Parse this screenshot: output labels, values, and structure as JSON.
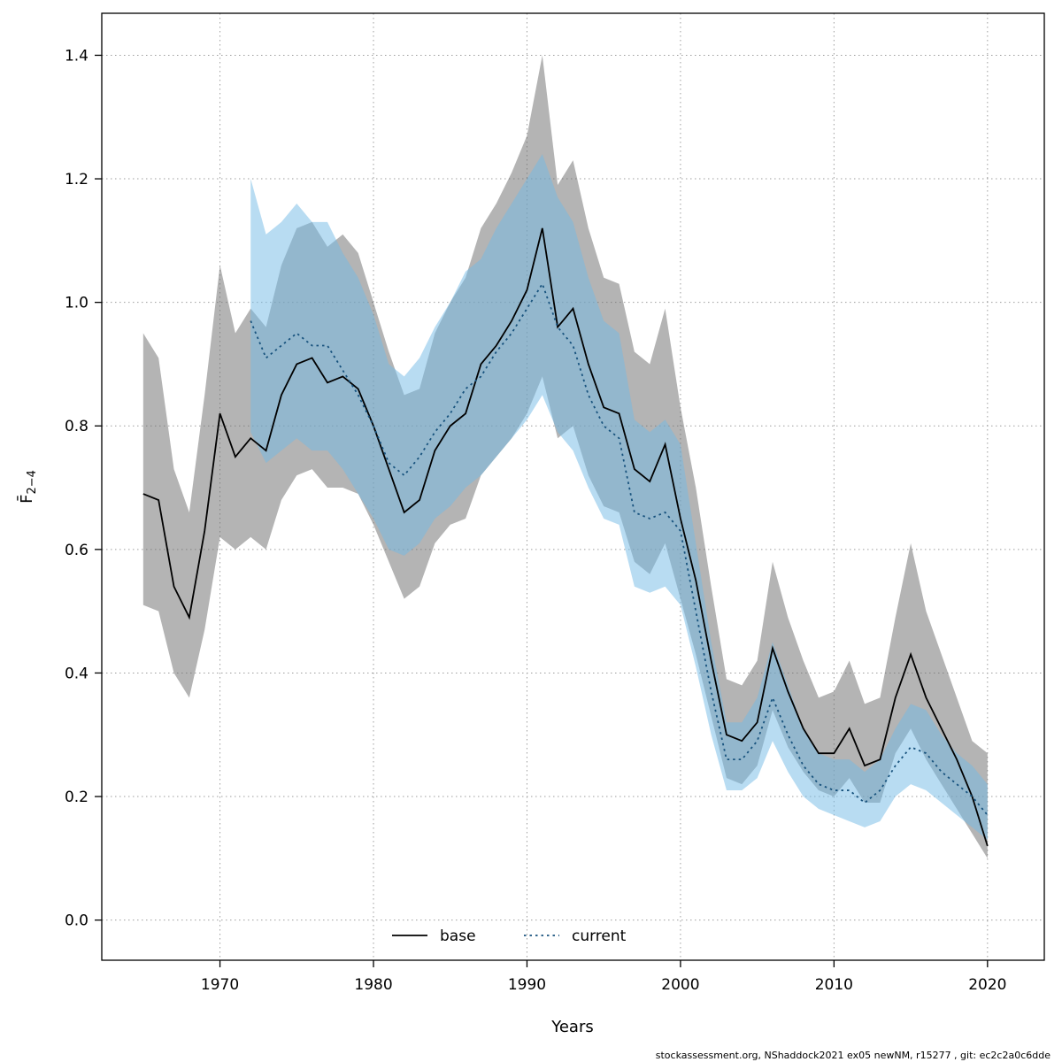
{
  "footer": {
    "credit": "stockassessment.org, NShaddock2021 ex05 newNM, r15277 , git: ec2c2a0c6dde"
  },
  "chart_data": {
    "type": "line",
    "title": "",
    "xlabel": "Years",
    "ylabel_main": "F̄",
    "ylabel_sub": "2−4",
    "grid": true,
    "legend_position": "bottom-center-inside",
    "axes": {
      "xlim": [
        1962.3,
        2023.7
      ],
      "ylim": [
        -0.065,
        1.468
      ],
      "xticks": [
        1970,
        1980,
        1990,
        2000,
        2010,
        2020
      ],
      "yticks": [
        0.0,
        0.2,
        0.4,
        0.6,
        0.8,
        1.0,
        1.2,
        1.4
      ]
    },
    "series": [
      {
        "name": "base",
        "start_year": 1965,
        "line_color": "#000000",
        "line_style": "solid",
        "band_color": "#696969",
        "band_opacity": 0.5,
        "values": [
          0.69,
          0.68,
          0.54,
          0.49,
          0.63,
          0.82,
          0.75,
          0.78,
          0.76,
          0.85,
          0.9,
          0.91,
          0.87,
          0.88,
          0.86,
          0.8,
          0.73,
          0.66,
          0.68,
          0.76,
          0.8,
          0.82,
          0.9,
          0.93,
          0.97,
          1.02,
          1.12,
          0.96,
          0.99,
          0.9,
          0.83,
          0.82,
          0.73,
          0.71,
          0.77,
          0.65,
          0.55,
          0.42,
          0.3,
          0.29,
          0.32,
          0.44,
          0.37,
          0.31,
          0.27,
          0.27,
          0.31,
          0.25,
          0.26,
          0.36,
          0.43,
          0.36,
          0.31,
          0.26,
          0.2,
          0.12
        ],
        "lower": [
          0.51,
          0.5,
          0.4,
          0.36,
          0.47,
          0.62,
          0.6,
          0.62,
          0.6,
          0.68,
          0.72,
          0.73,
          0.7,
          0.7,
          0.69,
          0.64,
          0.58,
          0.52,
          0.54,
          0.61,
          0.64,
          0.65,
          0.72,
          0.75,
          0.78,
          0.82,
          0.88,
          0.78,
          0.8,
          0.72,
          0.67,
          0.66,
          0.58,
          0.56,
          0.61,
          0.52,
          0.43,
          0.33,
          0.23,
          0.22,
          0.25,
          0.34,
          0.28,
          0.24,
          0.21,
          0.2,
          0.23,
          0.19,
          0.19,
          0.27,
          0.31,
          0.26,
          0.22,
          0.18,
          0.14,
          0.1
        ],
        "upper": [
          0.95,
          0.91,
          0.73,
          0.66,
          0.85,
          1.06,
          0.95,
          0.99,
          0.96,
          1.06,
          1.12,
          1.13,
          1.09,
          1.11,
          1.08,
          1.0,
          0.92,
          0.85,
          0.86,
          0.95,
          1.0,
          1.04,
          1.12,
          1.16,
          1.21,
          1.27,
          1.4,
          1.19,
          1.23,
          1.12,
          1.04,
          1.03,
          0.92,
          0.9,
          0.99,
          0.83,
          0.7,
          0.54,
          0.39,
          0.38,
          0.42,
          0.58,
          0.49,
          0.42,
          0.36,
          0.37,
          0.42,
          0.35,
          0.36,
          0.49,
          0.61,
          0.5,
          0.43,
          0.36,
          0.29,
          0.27
        ]
      },
      {
        "name": "current",
        "start_year": 1972,
        "line_color": "#17527d",
        "line_style": "dotted",
        "band_color": "#71b9e5",
        "band_opacity": 0.5,
        "values": [
          0.97,
          0.91,
          0.93,
          0.95,
          0.93,
          0.93,
          0.89,
          0.85,
          0.8,
          0.74,
          0.72,
          0.75,
          0.79,
          0.82,
          0.86,
          0.88,
          0.92,
          0.95,
          0.99,
          1.03,
          0.96,
          0.93,
          0.85,
          0.8,
          0.78,
          0.66,
          0.65,
          0.66,
          0.63,
          0.5,
          0.37,
          0.26,
          0.26,
          0.29,
          0.36,
          0.3,
          0.25,
          0.22,
          0.21,
          0.21,
          0.19,
          0.21,
          0.25,
          0.28,
          0.27,
          0.24,
          0.22,
          0.2,
          0.17
        ],
        "lower": [
          0.79,
          0.74,
          0.76,
          0.78,
          0.76,
          0.76,
          0.73,
          0.69,
          0.65,
          0.6,
          0.59,
          0.61,
          0.65,
          0.67,
          0.7,
          0.72,
          0.75,
          0.78,
          0.81,
          0.85,
          0.79,
          0.76,
          0.7,
          0.65,
          0.64,
          0.54,
          0.53,
          0.54,
          0.51,
          0.41,
          0.3,
          0.21,
          0.21,
          0.23,
          0.29,
          0.24,
          0.2,
          0.18,
          0.17,
          0.16,
          0.15,
          0.16,
          0.2,
          0.22,
          0.21,
          0.19,
          0.17,
          0.15,
          0.13
        ],
        "upper": [
          1.2,
          1.11,
          1.13,
          1.16,
          1.13,
          1.13,
          1.08,
          1.04,
          0.98,
          0.9,
          0.88,
          0.91,
          0.96,
          1.0,
          1.05,
          1.07,
          1.12,
          1.16,
          1.2,
          1.24,
          1.17,
          1.13,
          1.04,
          0.97,
          0.95,
          0.81,
          0.79,
          0.81,
          0.77,
          0.61,
          0.45,
          0.32,
          0.32,
          0.36,
          0.45,
          0.38,
          0.31,
          0.27,
          0.26,
          0.26,
          0.24,
          0.26,
          0.31,
          0.35,
          0.34,
          0.3,
          0.27,
          0.25,
          0.22
        ]
      }
    ]
  }
}
